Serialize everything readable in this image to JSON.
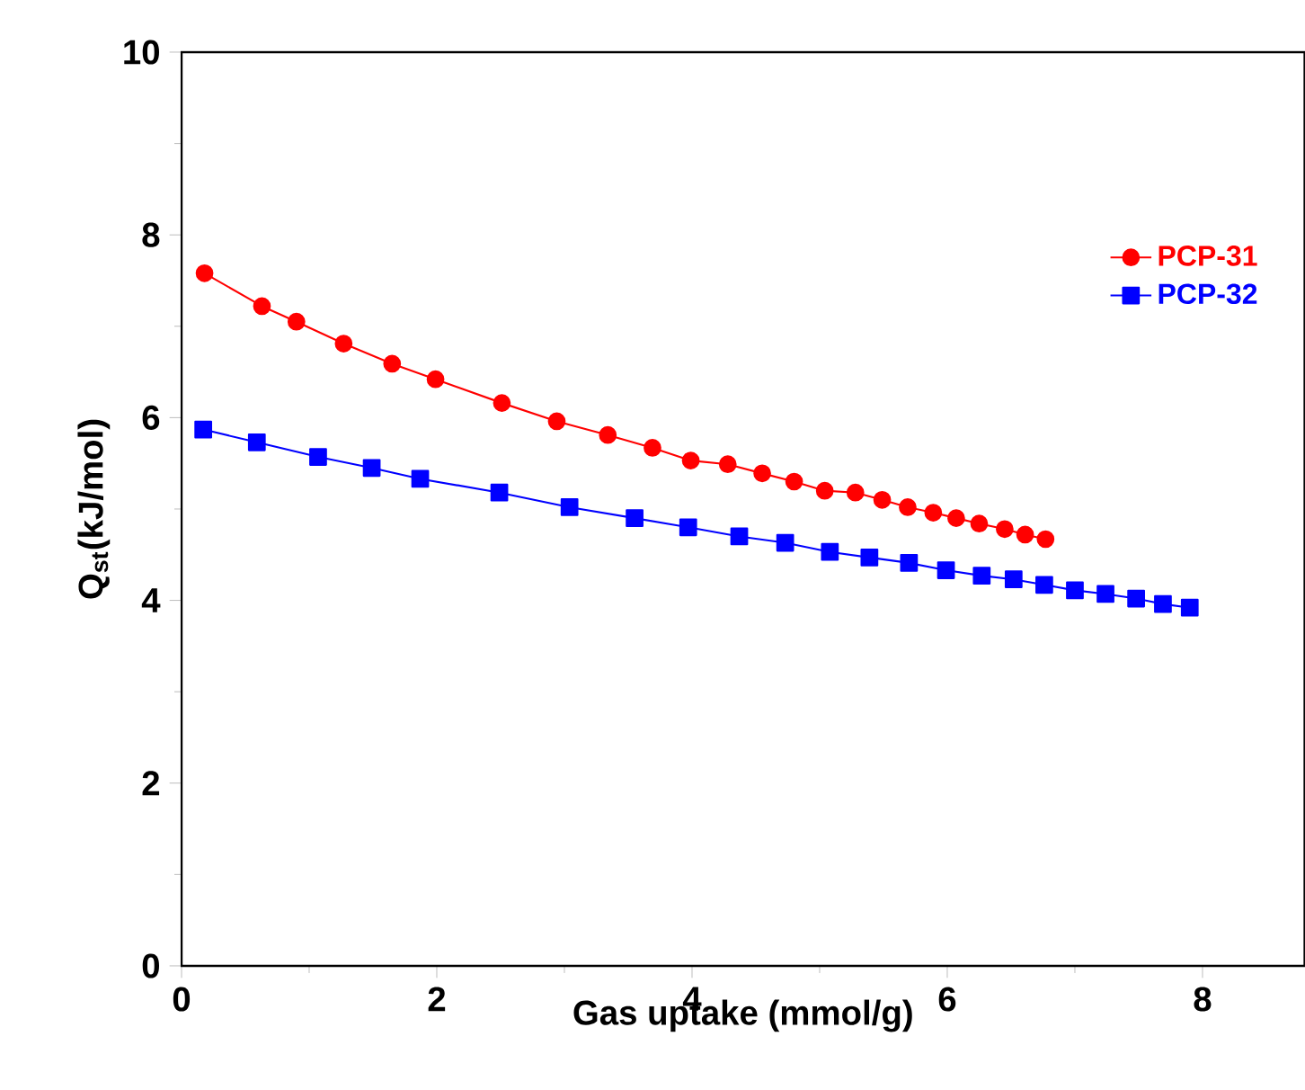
{
  "chart_data": {
    "type": "line",
    "xlabel": "Gas uptake (mmol/g)",
    "ylabel": "Q$_{st}$(kJ/mol)",
    "xlim": [
      0,
      8.8
    ],
    "ylim": [
      0,
      10
    ],
    "xticks": [
      0,
      2,
      4,
      6,
      8
    ],
    "yticks": [
      0,
      2,
      4,
      6,
      8,
      10
    ],
    "grid": false,
    "legend": "top right",
    "line_style": "solid",
    "series": [
      {
        "name": "PCP-31",
        "color": "#ff0000",
        "marker": "circle",
        "x": [
          0.18,
          0.63,
          0.9,
          1.27,
          1.65,
          1.99,
          2.51,
          2.94,
          3.34,
          3.69,
          3.99,
          4.28,
          4.55,
          4.8,
          5.04,
          5.28,
          5.49,
          5.69,
          5.89,
          6.07,
          6.25,
          6.45,
          6.61,
          6.77
        ],
        "values": [
          7.58,
          7.22,
          7.05,
          6.81,
          6.59,
          6.42,
          6.16,
          5.96,
          5.81,
          5.67,
          5.53,
          5.49,
          5.39,
          5.3,
          5.2,
          5.18,
          5.1,
          5.02,
          4.96,
          4.9,
          4.84,
          4.78,
          4.72,
          4.67
        ]
      },
      {
        "name": "PCP-32",
        "color": "#0000ff",
        "marker": "square",
        "x": [
          0.17,
          0.59,
          1.07,
          1.49,
          1.87,
          2.49,
          3.04,
          3.55,
          3.97,
          4.37,
          4.73,
          5.08,
          5.39,
          5.7,
          5.99,
          6.27,
          6.52,
          6.76,
          7.0,
          7.24,
          7.48,
          7.69,
          7.9
        ],
        "values": [
          5.87,
          5.73,
          5.57,
          5.45,
          5.33,
          5.18,
          5.02,
          4.9,
          4.8,
          4.7,
          4.63,
          4.53,
          4.47,
          4.41,
          4.33,
          4.27,
          4.23,
          4.17,
          4.11,
          4.07,
          4.02,
          3.96,
          3.92
        ]
      }
    ]
  }
}
